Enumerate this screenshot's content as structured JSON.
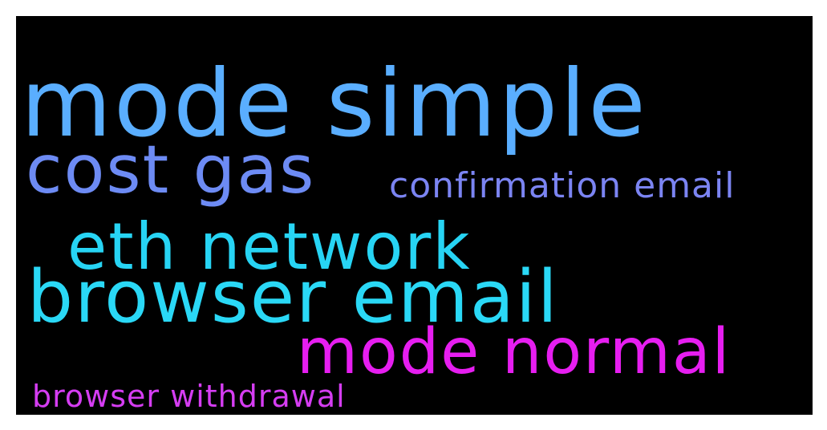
{
  "words": {
    "mode_simple": {
      "text": "mode simple",
      "color": "#5aaeff"
    },
    "cost_gas": {
      "text": "cost gas",
      "color": "#6d8bf4"
    },
    "confirmation_email": {
      "text": "confirmation email",
      "color": "#7b84f2"
    },
    "eth_network": {
      "text": "eth network",
      "color": "#27d4f4"
    },
    "browser_email": {
      "text": "browser email",
      "color": "#2ad8f6"
    },
    "mode_normal": {
      "text": "mode normal",
      "color": "#e61ef0"
    },
    "browser_withdrawal": {
      "text": "browser withdrawal",
      "color": "#d53df2"
    }
  },
  "background_color": "#000000"
}
